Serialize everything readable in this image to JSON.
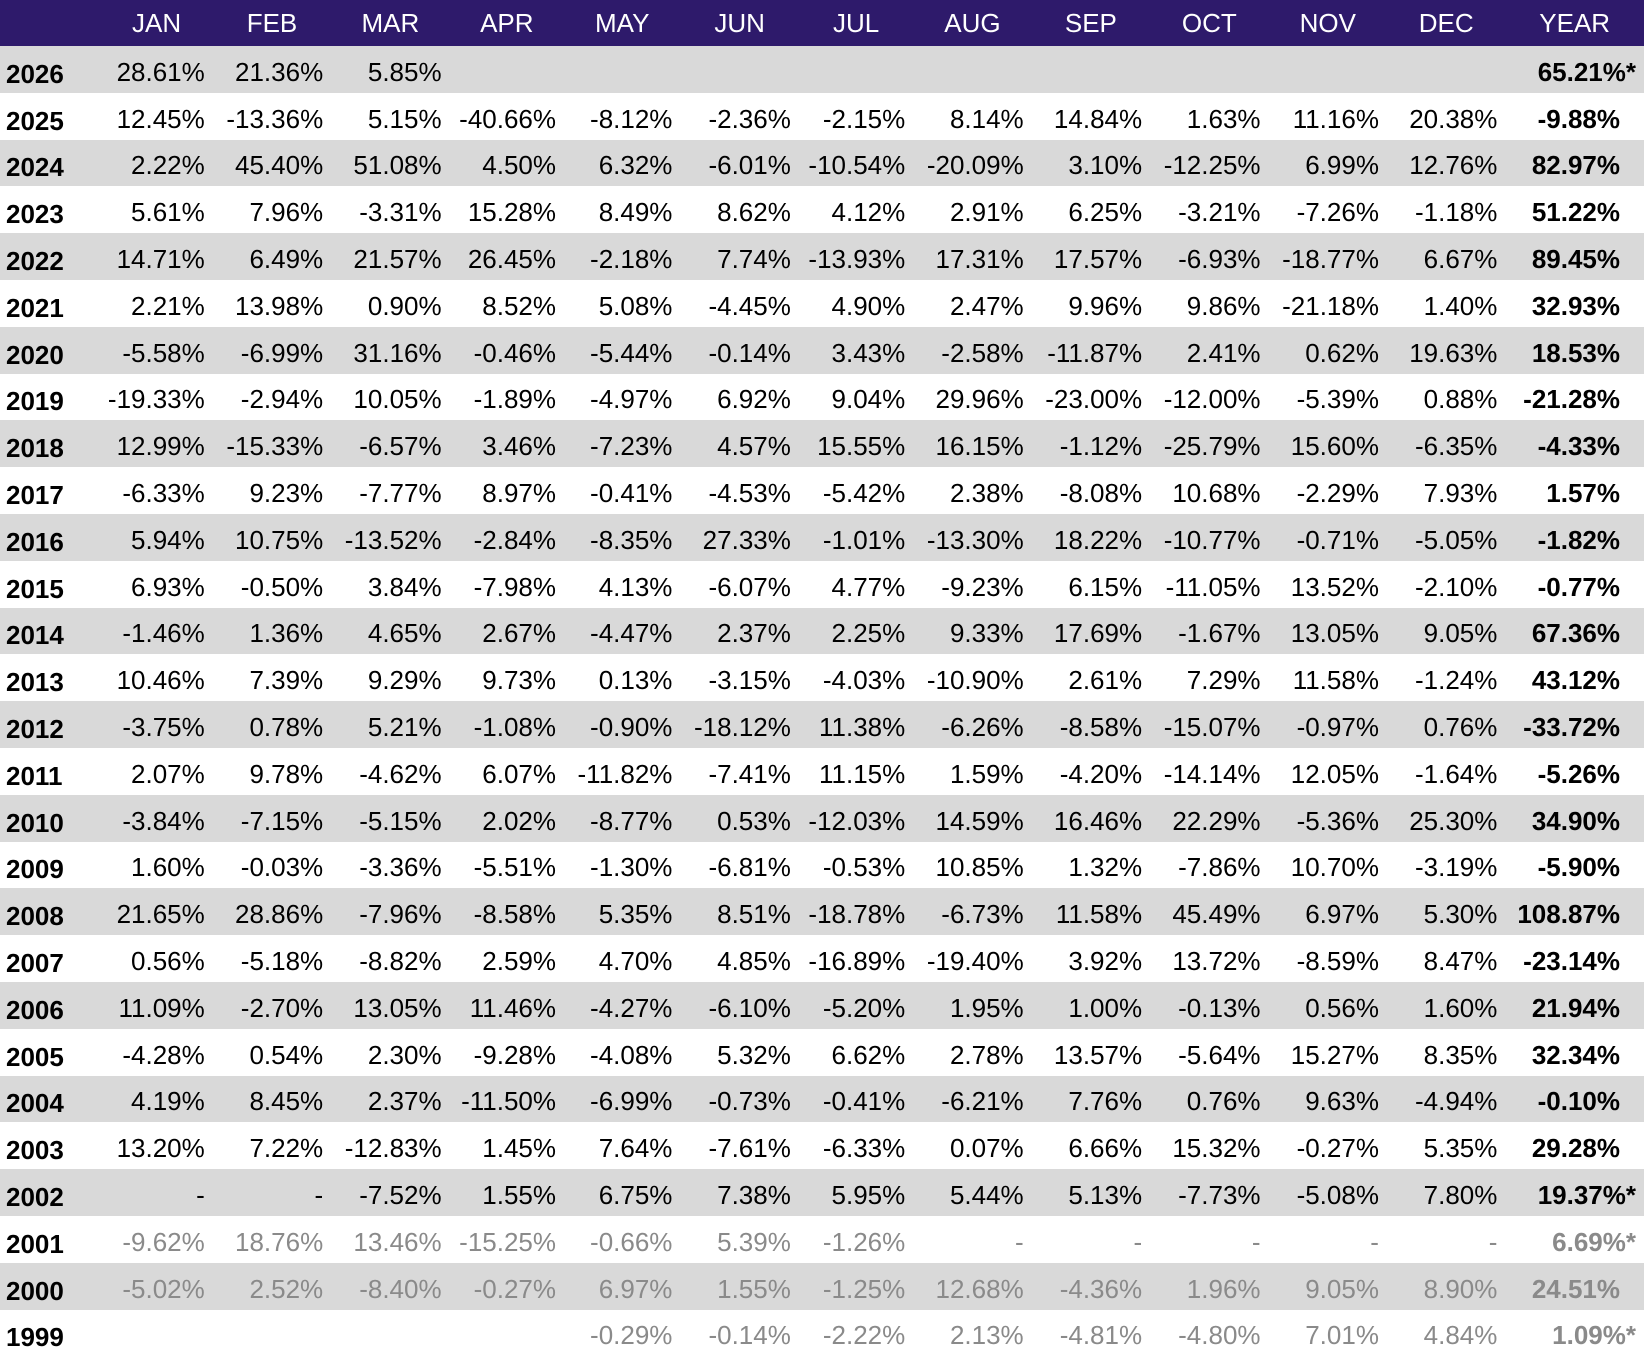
{
  "colors": {
    "header_bg": "#2e1a6b",
    "header_text": "#ffffff",
    "row_shade": "#d9d9d9",
    "row_plain": "#ffffff",
    "faded_text": "#8a8a8a"
  },
  "header": {
    "year_col": "",
    "months": [
      "JAN",
      "FEB",
      "MAR",
      "APR",
      "MAY",
      "JUN",
      "JUL",
      "AUG",
      "SEP",
      "OCT",
      "NOV",
      "DEC"
    ],
    "total": "YEAR"
  },
  "rows": [
    {
      "year": "2026",
      "months": [
        "28.61%",
        "21.36%",
        "5.85%",
        "",
        "",
        "",
        "",
        "",
        "",
        "",
        "",
        ""
      ],
      "total": "65.21%*",
      "faded": false
    },
    {
      "year": "2025",
      "months": [
        "12.45%",
        "-13.36%",
        "5.15%",
        "-40.66%",
        "-8.12%",
        "-2.36%",
        "-2.15%",
        "8.14%",
        "14.84%",
        "1.63%",
        "11.16%",
        "20.38%"
      ],
      "total": "-9.88%",
      "faded": false
    },
    {
      "year": "2024",
      "months": [
        "2.22%",
        "45.40%",
        "51.08%",
        "4.50%",
        "6.32%",
        "-6.01%",
        "-10.54%",
        "-20.09%",
        "3.10%",
        "-12.25%",
        "6.99%",
        "12.76%"
      ],
      "total": "82.97%",
      "faded": false
    },
    {
      "year": "2023",
      "months": [
        "5.61%",
        "7.96%",
        "-3.31%",
        "15.28%",
        "8.49%",
        "8.62%",
        "4.12%",
        "2.91%",
        "6.25%",
        "-3.21%",
        "-7.26%",
        "-1.18%"
      ],
      "total": "51.22%",
      "faded": false
    },
    {
      "year": "2022",
      "months": [
        "14.71%",
        "6.49%",
        "21.57%",
        "26.45%",
        "-2.18%",
        "7.74%",
        "-13.93%",
        "17.31%",
        "17.57%",
        "-6.93%",
        "-18.77%",
        "6.67%"
      ],
      "total": "89.45%",
      "faded": false
    },
    {
      "year": "2021",
      "months": [
        "2.21%",
        "13.98%",
        "0.90%",
        "8.52%",
        "5.08%",
        "-4.45%",
        "4.90%",
        "2.47%",
        "9.96%",
        "9.86%",
        "-21.18%",
        "1.40%"
      ],
      "total": "32.93%",
      "faded": false
    },
    {
      "year": "2020",
      "months": [
        "-5.58%",
        "-6.99%",
        "31.16%",
        "-0.46%",
        "-5.44%",
        "-0.14%",
        "3.43%",
        "-2.58%",
        "-11.87%",
        "2.41%",
        "0.62%",
        "19.63%"
      ],
      "total": "18.53%",
      "faded": false
    },
    {
      "year": "2019",
      "months": [
        "-19.33%",
        "-2.94%",
        "10.05%",
        "-1.89%",
        "-4.97%",
        "6.92%",
        "9.04%",
        "29.96%",
        "-23.00%",
        "-12.00%",
        "-5.39%",
        "0.88%"
      ],
      "total": "-21.28%",
      "faded": false
    },
    {
      "year": "2018",
      "months": [
        "12.99%",
        "-15.33%",
        "-6.57%",
        "3.46%",
        "-7.23%",
        "4.57%",
        "15.55%",
        "16.15%",
        "-1.12%",
        "-25.79%",
        "15.60%",
        "-6.35%"
      ],
      "total": "-4.33%",
      "faded": false
    },
    {
      "year": "2017",
      "months": [
        "-6.33%",
        "9.23%",
        "-7.77%",
        "8.97%",
        "-0.41%",
        "-4.53%",
        "-5.42%",
        "2.38%",
        "-8.08%",
        "10.68%",
        "-2.29%",
        "7.93%"
      ],
      "total": "1.57%",
      "faded": false
    },
    {
      "year": "2016",
      "months": [
        "5.94%",
        "10.75%",
        "-13.52%",
        "-2.84%",
        "-8.35%",
        "27.33%",
        "-1.01%",
        "-13.30%",
        "18.22%",
        "-10.77%",
        "-0.71%",
        "-5.05%"
      ],
      "total": "-1.82%",
      "faded": false
    },
    {
      "year": "2015",
      "months": [
        "6.93%",
        "-0.50%",
        "3.84%",
        "-7.98%",
        "4.13%",
        "-6.07%",
        "4.77%",
        "-9.23%",
        "6.15%",
        "-11.05%",
        "13.52%",
        "-2.10%"
      ],
      "total": "-0.77%",
      "faded": false
    },
    {
      "year": "2014",
      "months": [
        "-1.46%",
        "1.36%",
        "4.65%",
        "2.67%",
        "-4.47%",
        "2.37%",
        "2.25%",
        "9.33%",
        "17.69%",
        "-1.67%",
        "13.05%",
        "9.05%"
      ],
      "total": "67.36%",
      "faded": false
    },
    {
      "year": "2013",
      "months": [
        "10.46%",
        "7.39%",
        "9.29%",
        "9.73%",
        "0.13%",
        "-3.15%",
        "-4.03%",
        "-10.90%",
        "2.61%",
        "7.29%",
        "11.58%",
        "-1.24%"
      ],
      "total": "43.12%",
      "faded": false
    },
    {
      "year": "2012",
      "months": [
        "-3.75%",
        "0.78%",
        "5.21%",
        "-1.08%",
        "-0.90%",
        "-18.12%",
        "11.38%",
        "-6.26%",
        "-8.58%",
        "-15.07%",
        "-0.97%",
        "0.76%"
      ],
      "total": "-33.72%",
      "faded": false
    },
    {
      "year": "2011",
      "months": [
        "2.07%",
        "9.78%",
        "-4.62%",
        "6.07%",
        "-11.82%",
        "-7.41%",
        "11.15%",
        "1.59%",
        "-4.20%",
        "-14.14%",
        "12.05%",
        "-1.64%"
      ],
      "total": "-5.26%",
      "faded": false
    },
    {
      "year": "2010",
      "months": [
        "-3.84%",
        "-7.15%",
        "-5.15%",
        "2.02%",
        "-8.77%",
        "0.53%",
        "-12.03%",
        "14.59%",
        "16.46%",
        "22.29%",
        "-5.36%",
        "25.30%"
      ],
      "total": "34.90%",
      "faded": false
    },
    {
      "year": "2009",
      "months": [
        "1.60%",
        "-0.03%",
        "-3.36%",
        "-5.51%",
        "-1.30%",
        "-6.81%",
        "-0.53%",
        "10.85%",
        "1.32%",
        "-7.86%",
        "10.70%",
        "-3.19%"
      ],
      "total": "-5.90%",
      "faded": false
    },
    {
      "year": "2008",
      "months": [
        "21.65%",
        "28.86%",
        "-7.96%",
        "-8.58%",
        "5.35%",
        "8.51%",
        "-18.78%",
        "-6.73%",
        "11.58%",
        "45.49%",
        "6.97%",
        "5.30%"
      ],
      "total": "108.87%",
      "faded": false
    },
    {
      "year": "2007",
      "months": [
        "0.56%",
        "-5.18%",
        "-8.82%",
        "2.59%",
        "4.70%",
        "4.85%",
        "-16.89%",
        "-19.40%",
        "3.92%",
        "13.72%",
        "-8.59%",
        "8.47%"
      ],
      "total": "-23.14%",
      "faded": false
    },
    {
      "year": "2006",
      "months": [
        "11.09%",
        "-2.70%",
        "13.05%",
        "11.46%",
        "-4.27%",
        "-6.10%",
        "-5.20%",
        "1.95%",
        "1.00%",
        "-0.13%",
        "0.56%",
        "1.60%"
      ],
      "total": "21.94%",
      "faded": false
    },
    {
      "year": "2005",
      "months": [
        "-4.28%",
        "0.54%",
        "2.30%",
        "-9.28%",
        "-4.08%",
        "5.32%",
        "6.62%",
        "2.78%",
        "13.57%",
        "-5.64%",
        "15.27%",
        "8.35%"
      ],
      "total": "32.34%",
      "faded": false
    },
    {
      "year": "2004",
      "months": [
        "4.19%",
        "8.45%",
        "2.37%",
        "-11.50%",
        "-6.99%",
        "-0.73%",
        "-0.41%",
        "-6.21%",
        "7.76%",
        "0.76%",
        "9.63%",
        "-4.94%"
      ],
      "total": "-0.10%",
      "faded": false
    },
    {
      "year": "2003",
      "months": [
        "13.20%",
        "7.22%",
        "-12.83%",
        "1.45%",
        "7.64%",
        "-7.61%",
        "-6.33%",
        "0.07%",
        "6.66%",
        "15.32%",
        "-0.27%",
        "5.35%"
      ],
      "total": "29.28%",
      "faded": false
    },
    {
      "year": "2002",
      "months": [
        "-",
        "-",
        "-7.52%",
        "1.55%",
        "6.75%",
        "7.38%",
        "5.95%",
        "5.44%",
        "5.13%",
        "-7.73%",
        "-5.08%",
        "7.80%"
      ],
      "total": "19.37%*",
      "faded": false
    },
    {
      "year": "2001",
      "months": [
        "-9.62%",
        "18.76%",
        "13.46%",
        "-15.25%",
        "-0.66%",
        "5.39%",
        "-1.26%",
        "-",
        "-",
        "-",
        "-",
        "-"
      ],
      "total": "6.69%*",
      "faded": true
    },
    {
      "year": "2000",
      "months": [
        "-5.02%",
        "2.52%",
        "-8.40%",
        "-0.27%",
        "6.97%",
        "1.55%",
        "-1.25%",
        "12.68%",
        "-4.36%",
        "1.96%",
        "9.05%",
        "8.90%"
      ],
      "total": "24.51%",
      "faded": true
    },
    {
      "year": "1999",
      "months": [
        "",
        "",
        "",
        "",
        "-0.29%",
        "-0.14%",
        "-2.22%",
        "2.13%",
        "-4.81%",
        "-4.80%",
        "7.01%",
        "4.84%"
      ],
      "total": "1.09%*",
      "faded": true
    }
  ]
}
